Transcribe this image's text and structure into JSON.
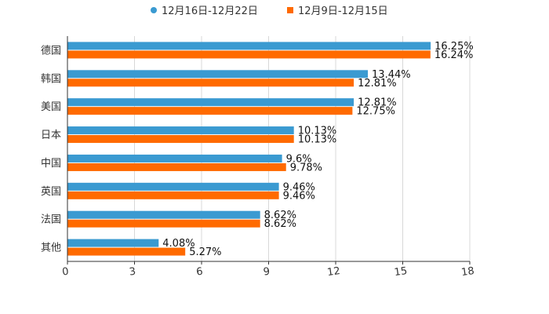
{
  "chart_data": {
    "type": "bar",
    "orientation": "horizontal",
    "categories": [
      "德国",
      "韩国",
      "美国",
      "日本",
      "中国",
      "英国",
      "法国",
      "其他"
    ],
    "series": [
      {
        "name": "12月16日-12月22日",
        "color": "#3a9ad1",
        "values": [
          16.25,
          13.44,
          12.81,
          10.13,
          9.6,
          9.46,
          8.62,
          4.08
        ],
        "labels": [
          "16.25%",
          "13.44%",
          "12.81%",
          "10.13%",
          "9.6%",
          "9.46%",
          "8.62%",
          "4.08%"
        ]
      },
      {
        "name": "12月9日-12月15日",
        "color": "#ff6a00",
        "values": [
          16.24,
          12.81,
          12.75,
          10.13,
          9.78,
          9.46,
          8.62,
          5.27
        ],
        "labels": [
          "16.24%",
          "12.81%",
          "12.75%",
          "10.13%",
          "9.78%",
          "9.46%",
          "8.62%",
          "5.27%"
        ]
      }
    ],
    "xlim": [
      0,
      18
    ],
    "xticks": [
      0,
      3,
      6,
      9,
      12,
      15,
      18
    ],
    "xtick_labels": [
      "0",
      "3",
      "6",
      "9",
      "12",
      "15",
      "18"
    ],
    "grid": true,
    "legend_position": "top"
  }
}
